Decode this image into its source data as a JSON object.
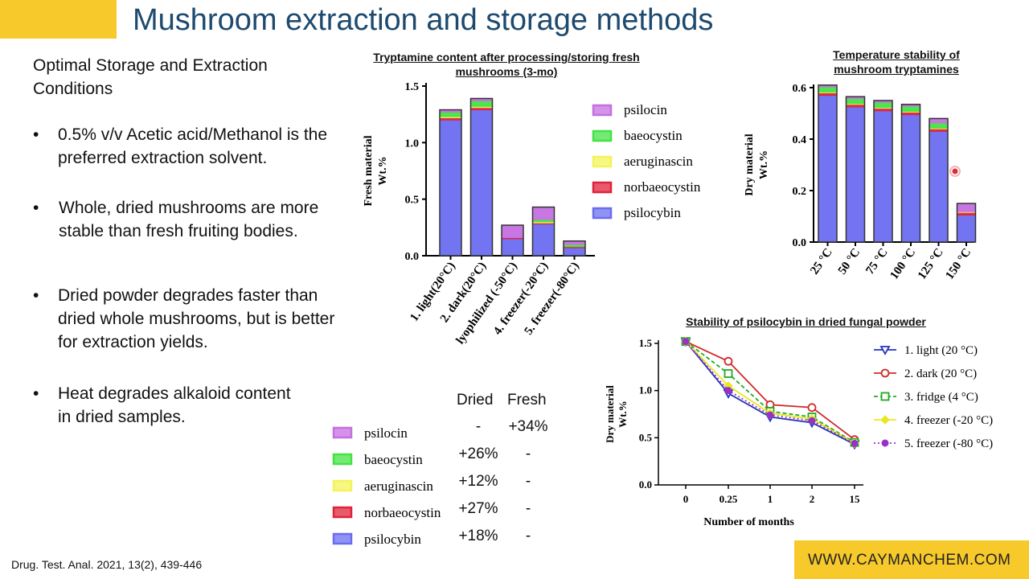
{
  "page": {
    "title": "Mushroom extraction and storage methods",
    "subtitle": "Optimal Storage and Extraction Conditions",
    "bullets": [
      "0.5% v/v Acetic acid/Methanol is the preferred extraction solvent.",
      "Whole, dried mushrooms are more stable than fresh fruiting bodies.",
      "Dried powder degrades faster than dried whole mushrooms, but is better for extraction yields.",
      "Heat degrades alkaloid content in dried samples."
    ],
    "bullet_symbol": "•",
    "citation": "Drug. Test. Anal. 2021, 13(2), 439-446",
    "url": "WWW.CAYMANCHEM.COM",
    "colors": {
      "title": "#1d4a6e",
      "accent_yellow": "#f7c92a",
      "psilocin": "#c56fe0",
      "baeocystin": "#44e344",
      "aeruginascin": "#f4f45a",
      "norbaeocystin": "#e0223a",
      "psilocybin": "#6b6df0"
    }
  },
  "chart_data": [
    {
      "id": "tryptamine-fresh",
      "type": "bar",
      "title": "Tryptamine content after processing/storing fresh mushrooms (3-mo)",
      "ylabel": "Fresh material Wt.%",
      "ylim": [
        0,
        1.5
      ],
      "yticks": [
        "0.0",
        "0.5",
        "1.0",
        "1.5"
      ],
      "stacked": true,
      "categories": [
        "1. light(20°C)",
        "2. dark(20°C)",
        "3. lyophilized (-50°C)",
        "4. freezer(-20°C)",
        "5. freezer(-80°C)"
      ],
      "series": [
        {
          "name": "psilocybin",
          "values": [
            1.2,
            1.29,
            0.15,
            0.28,
            0.07
          ]
        },
        {
          "name": "norbaeocystin",
          "values": [
            0.02,
            0.02,
            0.01,
            0.01,
            0.01
          ]
        },
        {
          "name": "aeruginascin",
          "values": [
            0.01,
            0.01,
            0.0,
            0.01,
            0.0
          ]
        },
        {
          "name": "baeocystin",
          "values": [
            0.04,
            0.05,
            0.0,
            0.02,
            0.02
          ]
        },
        {
          "name": "psilocin",
          "values": [
            0.02,
            0.02,
            0.11,
            0.11,
            0.03
          ]
        }
      ],
      "legend_order": [
        "psilocin",
        "baeocystin",
        "aeruginascin",
        "norbaeocystin",
        "psilocybin"
      ],
      "legend_position": "right"
    },
    {
      "id": "temperature-stability",
      "type": "bar",
      "title": "Temperature stability of mushroom tryptamines",
      "ylabel": "Dry material Wt.%",
      "ylim": [
        0,
        0.6
      ],
      "yticks": [
        "0.0",
        "0.2",
        "0.4",
        "0.6"
      ],
      "stacked": true,
      "categories": [
        "25 °C",
        "50 °C",
        "75 °C",
        "100 °C",
        "125 °C",
        "150 °C"
      ],
      "series": [
        {
          "name": "psilocybin",
          "values": [
            0.57,
            0.525,
            0.51,
            0.495,
            0.43,
            0.105
          ]
        },
        {
          "name": "norbaeocystin",
          "values": [
            0.01,
            0.01,
            0.01,
            0.01,
            0.01,
            0.01
          ]
        },
        {
          "name": "aeruginascin",
          "values": [
            0.003,
            0.003,
            0.003,
            0.003,
            0.003,
            0.003
          ]
        },
        {
          "name": "baeocystin",
          "values": [
            0.02,
            0.02,
            0.02,
            0.02,
            0.02,
            0.0
          ]
        },
        {
          "name": "psilocin",
          "values": [
            0.007,
            0.007,
            0.007,
            0.007,
            0.017,
            0.032
          ]
        }
      ],
      "legend_position": "none"
    },
    {
      "id": "psilocybin-powder-stability",
      "type": "line",
      "title": "Stability of psilocybin in dried fungal powder",
      "xlabel": "Number of months",
      "ylabel": "Dry material Wt.%",
      "x": [
        "0",
        "0.25",
        "1",
        "2",
        "15"
      ],
      "ylim": [
        0,
        1.5
      ],
      "yticks": [
        "0.0",
        "0.5",
        "1.0",
        "1.5"
      ],
      "series": [
        {
          "name": "1. light (20 °C)",
          "color": "#2233bb",
          "marker": "triangle-down",
          "dash": "none",
          "values": [
            1.52,
            0.97,
            0.72,
            0.66,
            0.43
          ]
        },
        {
          "name": "2. dark (20 °C)",
          "color": "#d02a2a",
          "marker": "circle-open",
          "dash": "none",
          "values": [
            1.52,
            1.31,
            0.85,
            0.82,
            0.48
          ]
        },
        {
          "name": "3. fridge (4 °C)",
          "color": "#22aa22",
          "marker": "square-open",
          "dash": "dashed",
          "values": [
            1.52,
            1.18,
            0.78,
            0.72,
            0.45
          ]
        },
        {
          "name": "4. freezer (-20 °C)",
          "color": "#e8e820",
          "marker": "diamond",
          "dash": "none",
          "values": [
            1.52,
            1.05,
            0.76,
            0.7,
            0.44
          ]
        },
        {
          "name": "5. freezer (-80 °C)",
          "color": "#9b30c8",
          "marker": "circle-filled",
          "dash": "dotted",
          "values": [
            1.52,
            1.0,
            0.74,
            0.68,
            0.44
          ]
        }
      ],
      "legend_position": "right"
    },
    {
      "id": "dried-fresh-table",
      "type": "table",
      "columns": [
        "Dried",
        "Fresh"
      ],
      "rows": [
        {
          "name": "psilocin",
          "dried": "-",
          "fresh": "+34%"
        },
        {
          "name": "baeocystin",
          "dried": "+26%",
          "fresh": "-"
        },
        {
          "name": "aeruginascin",
          "dried": "+12%",
          "fresh": "-"
        },
        {
          "name": "norbaeocystin",
          "dried": "+27%",
          "fresh": "-"
        },
        {
          "name": "psilocybin",
          "dried": "+18%",
          "fresh": "-"
        }
      ]
    }
  ]
}
